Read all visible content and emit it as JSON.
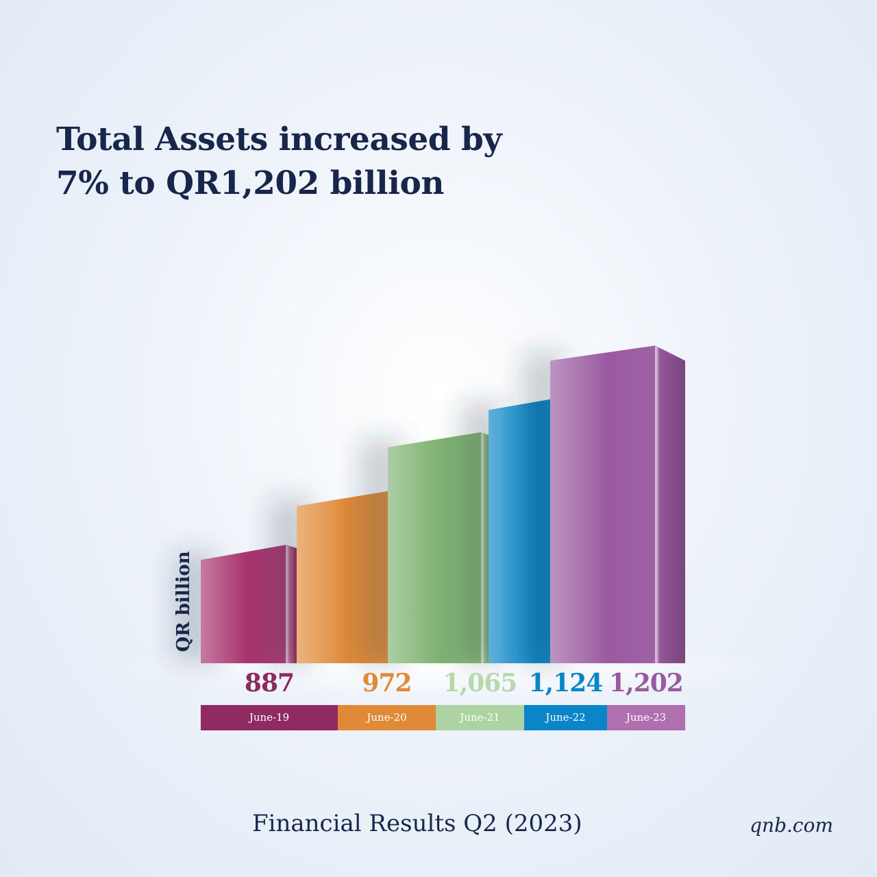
{
  "headline": {
    "line1": "Total Assets increased by",
    "line2": "7% to QR1,202 billion"
  },
  "footer": {
    "title": "Financial Results Q2 (2023)",
    "site": "qnb.com"
  },
  "chart_data": {
    "type": "bar",
    "title": "",
    "ylabel": "QR billion",
    "categories": [
      "June-19",
      "June-20",
      "June-21",
      "June-22",
      "June-23"
    ],
    "values": [
      887,
      972,
      1065,
      1124,
      1202
    ],
    "value_labels": [
      "887",
      "972",
      "1,065",
      "1,124",
      "1,202"
    ],
    "ylim": [
      700,
      1250
    ],
    "grid": false,
    "colors": [
      "#a8336e",
      "#e08a38",
      "#7fb271",
      "#0a86c8",
      "#9a5aa0"
    ],
    "value_label_colors": [
      "#8e2a60",
      "#e08a38",
      "#b7d8ac",
      "#0a86c8",
      "#9a5aa0"
    ],
    "category_band_colors": [
      "#8f2a63",
      "#e08a38",
      "#acd3a1",
      "#0a86c8",
      "#b070b0"
    ]
  }
}
